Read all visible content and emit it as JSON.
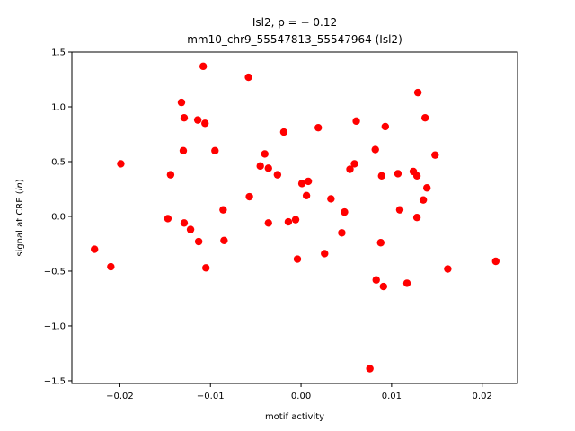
{
  "chart_data": {
    "type": "scatter",
    "title_line1": "Isl2, ρ = − 0.12",
    "title_line2": "mm10_chr9_55547813_55547964 (Isl2)",
    "xlabel": "motif activity",
    "ylabel": "signal at CRE (",
    "ylabel_italic": "ln",
    "ylabel_suffix": ")",
    "xlim": [
      -0.0253,
      0.0239
    ],
    "ylim": [
      -1.525,
      1.5
    ],
    "x_ticks": [
      -0.02,
      -0.01,
      0.0,
      0.01,
      0.02
    ],
    "x_tick_labels": [
      "−0.02",
      "−0.01",
      "0.00",
      "0.01",
      "0.02"
    ],
    "y_ticks": [
      -1.5,
      -1.0,
      -0.5,
      0.0,
      0.5,
      1.0,
      1.5
    ],
    "y_tick_labels": [
      "−1.5",
      "−1.0",
      "−0.5",
      "0.0",
      "0.5",
      "1.0",
      "1.5"
    ],
    "grid": false,
    "marker_color": "#ff0000",
    "points": [
      {
        "x": -0.0228,
        "y": -0.3
      },
      {
        "x": -0.021,
        "y": -0.46
      },
      {
        "x": -0.0199,
        "y": 0.48
      },
      {
        "x": -0.0147,
        "y": -0.02
      },
      {
        "x": -0.0144,
        "y": 0.38
      },
      {
        "x": -0.0132,
        "y": 1.04
      },
      {
        "x": -0.013,
        "y": 0.6
      },
      {
        "x": -0.0129,
        "y": 0.9
      },
      {
        "x": -0.0129,
        "y": -0.06
      },
      {
        "x": -0.0122,
        "y": -0.12
      },
      {
        "x": -0.0114,
        "y": 0.88
      },
      {
        "x": -0.0113,
        "y": -0.23
      },
      {
        "x": -0.0108,
        "y": 1.37
      },
      {
        "x": -0.0106,
        "y": 0.85
      },
      {
        "x": -0.0105,
        "y": -0.47
      },
      {
        "x": -0.0095,
        "y": 0.6
      },
      {
        "x": -0.0086,
        "y": 0.06
      },
      {
        "x": -0.0085,
        "y": -0.22
      },
      {
        "x": -0.0058,
        "y": 1.27
      },
      {
        "x": -0.0057,
        "y": 0.18
      },
      {
        "x": -0.0045,
        "y": 0.46
      },
      {
        "x": -0.004,
        "y": 0.57
      },
      {
        "x": -0.0036,
        "y": 0.44
      },
      {
        "x": -0.0036,
        "y": -0.06
      },
      {
        "x": -0.0026,
        "y": 0.38
      },
      {
        "x": -0.0019,
        "y": 0.77
      },
      {
        "x": -0.0014,
        "y": -0.05
      },
      {
        "x": -0.0006,
        "y": -0.03
      },
      {
        "x": -0.0004,
        "y": -0.39
      },
      {
        "x": 0.0001,
        "y": 0.3
      },
      {
        "x": 0.0006,
        "y": 0.19
      },
      {
        "x": 0.0008,
        "y": 0.32
      },
      {
        "x": 0.0019,
        "y": 0.81
      },
      {
        "x": 0.0026,
        "y": -0.34
      },
      {
        "x": 0.0033,
        "y": 0.16
      },
      {
        "x": 0.0045,
        "y": -0.15
      },
      {
        "x": 0.0048,
        "y": 0.04
      },
      {
        "x": 0.0054,
        "y": 0.43
      },
      {
        "x": 0.0059,
        "y": 0.48
      },
      {
        "x": 0.0061,
        "y": 0.87
      },
      {
        "x": 0.0076,
        "y": -1.39
      },
      {
        "x": 0.0082,
        "y": 0.61
      },
      {
        "x": 0.0083,
        "y": -0.58
      },
      {
        "x": 0.0088,
        "y": -0.24
      },
      {
        "x": 0.0089,
        "y": 0.37
      },
      {
        "x": 0.0091,
        "y": -0.64
      },
      {
        "x": 0.0093,
        "y": 0.82
      },
      {
        "x": 0.0107,
        "y": 0.39
      },
      {
        "x": 0.0109,
        "y": 0.06
      },
      {
        "x": 0.0117,
        "y": -0.61
      },
      {
        "x": 0.0124,
        "y": 0.41
      },
      {
        "x": 0.0128,
        "y": -0.01
      },
      {
        "x": 0.0128,
        "y": 0.37
      },
      {
        "x": 0.0129,
        "y": 1.13
      },
      {
        "x": 0.0135,
        "y": 0.15
      },
      {
        "x": 0.0137,
        "y": 0.9
      },
      {
        "x": 0.0139,
        "y": 0.26
      },
      {
        "x": 0.0148,
        "y": 0.56
      },
      {
        "x": 0.0162,
        "y": -0.48
      },
      {
        "x": 0.0215,
        "y": -0.41
      }
    ]
  }
}
